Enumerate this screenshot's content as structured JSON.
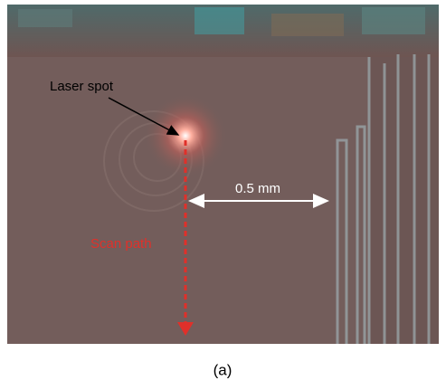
{
  "annotations": {
    "laser_spot": "Laser spot",
    "scale": "0.5 mm",
    "scan_path": "Scan path"
  },
  "caption": "(a)"
}
